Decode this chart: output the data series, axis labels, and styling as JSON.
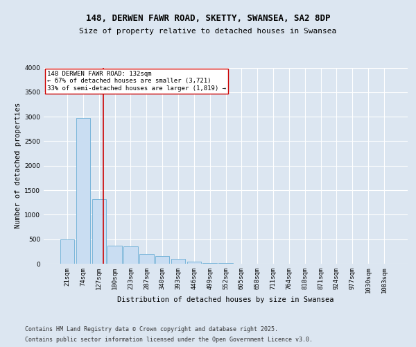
{
  "title_line1": "148, DERWEN FAWR ROAD, SKETTY, SWANSEA, SA2 8DP",
  "title_line2": "Size of property relative to detached houses in Swansea",
  "xlabel": "Distribution of detached houses by size in Swansea",
  "ylabel": "Number of detached properties",
  "bin_labels": [
    "21sqm",
    "74sqm",
    "127sqm",
    "180sqm",
    "233sqm",
    "287sqm",
    "340sqm",
    "393sqm",
    "446sqm",
    "499sqm",
    "552sqm",
    "605sqm",
    "658sqm",
    "711sqm",
    "764sqm",
    "818sqm",
    "871sqm",
    "924sqm",
    "977sqm",
    "1030sqm",
    "1083sqm"
  ],
  "bar_values": [
    500,
    2975,
    1320,
    375,
    360,
    200,
    155,
    100,
    45,
    15,
    10,
    5,
    3,
    2,
    1,
    1,
    1,
    1,
    1,
    0,
    0
  ],
  "bar_color": "#c9ddf2",
  "bar_edge_color": "#6baed6",
  "vline_color": "#cc0000",
  "vline_pos": 2.28,
  "annotation_text": "148 DERWEN FAWR ROAD: 132sqm\n← 67% of detached houses are smaller (3,721)\n33% of semi-detached houses are larger (1,819) →",
  "annotation_box_color": "#ffffff",
  "annotation_box_edge": "#cc0000",
  "ylim": [
    0,
    4000
  ],
  "yticks": [
    0,
    500,
    1000,
    1500,
    2000,
    2500,
    3000,
    3500,
    4000
  ],
  "footer_line1": "Contains HM Land Registry data © Crown copyright and database right 2025.",
  "footer_line2": "Contains public sector information licensed under the Open Government Licence v3.0.",
  "bg_color": "#dce6f1",
  "plot_bg_color": "#dce6f1",
  "grid_color": "#ffffff",
  "title_fontsize": 9,
  "subtitle_fontsize": 8,
  "axis_label_fontsize": 7.5,
  "tick_fontsize": 6.5,
  "annotation_fontsize": 6.5,
  "footer_fontsize": 6.0
}
